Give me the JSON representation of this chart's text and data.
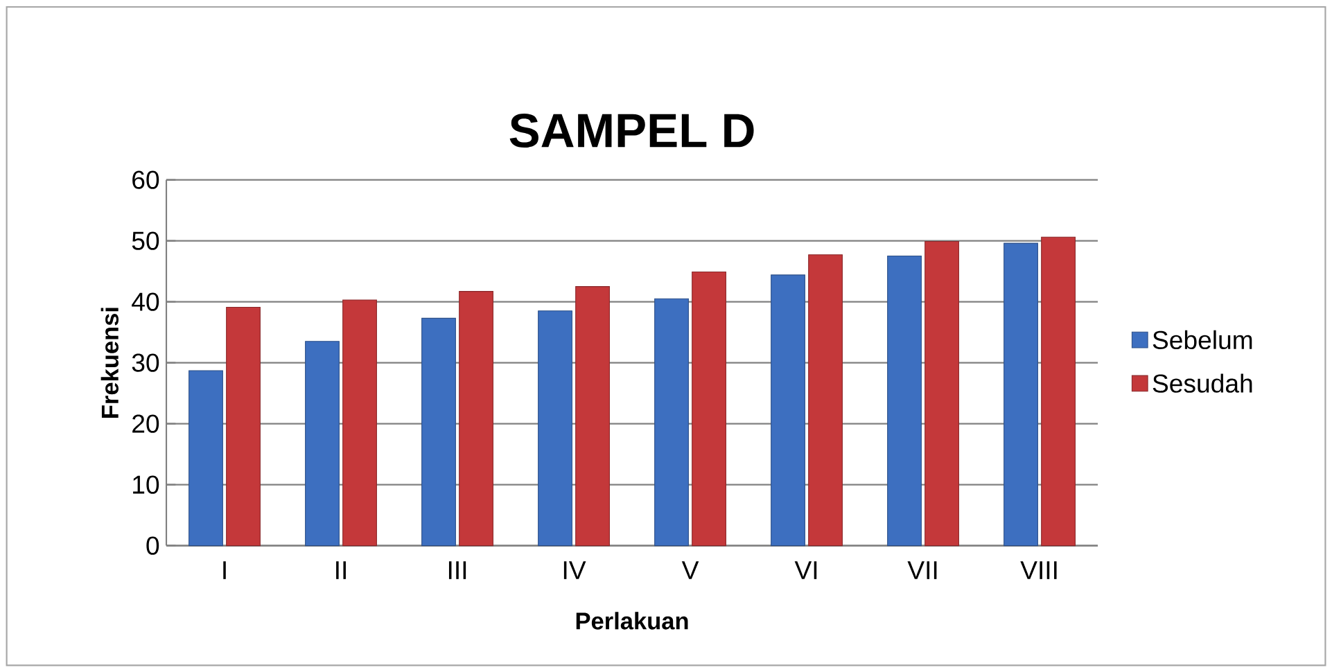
{
  "chart_data": {
    "type": "bar",
    "title": "SAMPEL D",
    "xlabel": "Perlakuan",
    "ylabel": "Frekuensi",
    "categories": [
      "I",
      "II",
      "III",
      "IV",
      "V",
      "VI",
      "VII",
      "VIII"
    ],
    "series": [
      {
        "name": "Sebelum",
        "color": "#3d6fc0",
        "values": [
          28.7,
          33.5,
          37.3,
          38.5,
          40.5,
          44.4,
          47.5,
          49.6
        ]
      },
      {
        "name": "Sesudah",
        "color": "#c4383a",
        "values": [
          39.1,
          40.3,
          41.7,
          42.5,
          44.9,
          47.7,
          49.9,
          50.6
        ]
      }
    ],
    "ylim": [
      0,
      60
    ],
    "yticks": [
      0,
      10,
      20,
      30,
      40,
      50,
      60
    ],
    "grid": "y",
    "legend": "right"
  }
}
